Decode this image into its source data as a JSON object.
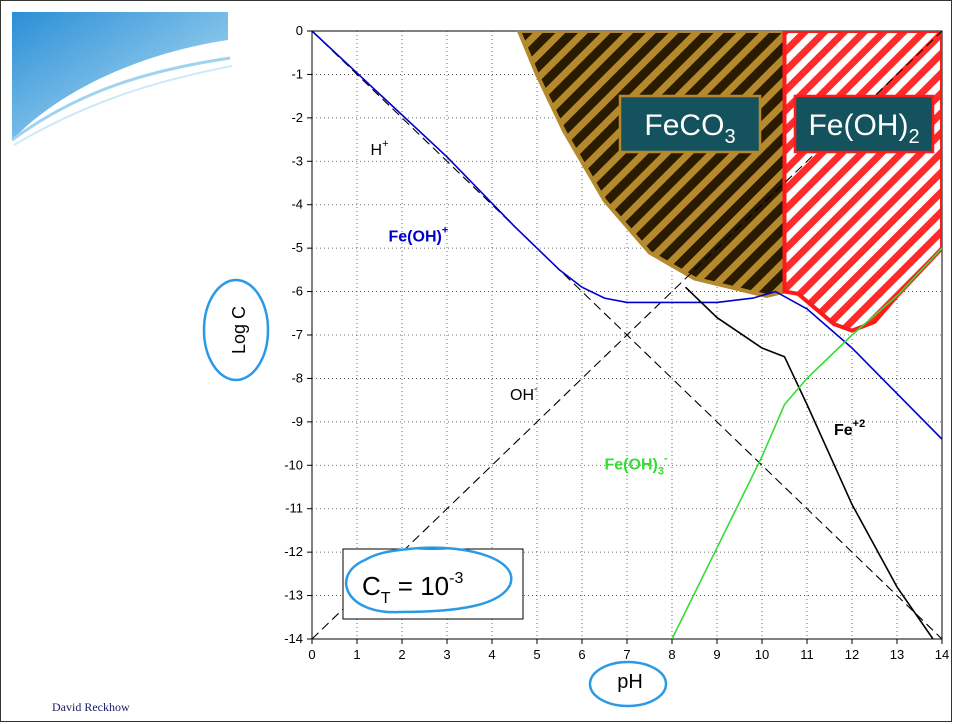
{
  "footer": {
    "author": "David Reckhow"
  },
  "annotations": {
    "ct_label": "C",
    "ct_sub": "T",
    "ct_eq": " = 10",
    "ct_sup": "-3"
  },
  "chart_data": {
    "type": "line",
    "xlabel": "pH",
    "ylabel": "Log C",
    "xlim": [
      0,
      14
    ],
    "ylim": [
      -14,
      0
    ],
    "xticks": [
      "0",
      "1",
      "2",
      "3",
      "4",
      "5",
      "6",
      "7",
      "8",
      "9",
      "10",
      "11",
      "12",
      "13",
      "14"
    ],
    "yticks": [
      "0",
      "-1",
      "-2",
      "-3",
      "-4",
      "-5",
      "-6",
      "-7",
      "-8",
      "-9",
      "-10",
      "-11",
      "-12",
      "-13",
      "-14"
    ],
    "grid": true,
    "series": [
      {
        "name": "H+",
        "style": "dashed",
        "color": "#000000",
        "x": [
          0,
          14
        ],
        "y": [
          0,
          -14
        ]
      },
      {
        "name": "OH-",
        "style": "dashed",
        "color": "#000000",
        "x": [
          0,
          14
        ],
        "y": [
          -14,
          0
        ]
      },
      {
        "name": "Fe(OH)+",
        "color": "#0000cc",
        "x": [
          0,
          3,
          4.5,
          5.5,
          6,
          6.5,
          7,
          8,
          9,
          9.8,
          10.3,
          11,
          12,
          13,
          14
        ],
        "y": [
          0,
          -2.9,
          -4.5,
          -5.5,
          -5.9,
          -6.15,
          -6.25,
          -6.25,
          -6.25,
          -6.15,
          -6.0,
          -6.4,
          -7.3,
          -8.35,
          -9.4
        ]
      },
      {
        "name": "Fe+2",
        "color": "#000000",
        "x": [
          8.3,
          9,
          10,
          10.5,
          11,
          12,
          13,
          13.8
        ],
        "y": [
          -5.9,
          -6.6,
          -7.3,
          -7.5,
          -8.6,
          -10.9,
          -12.8,
          -14
        ]
      },
      {
        "name": "Fe(OH)3-",
        "color": "#33dd33",
        "x": [
          8,
          9,
          10,
          10.5,
          11,
          12,
          13,
          14
        ],
        "y": [
          -14,
          -11.9,
          -9.8,
          -8.6,
          -8.0,
          -7.0,
          -6.1,
          -5.0
        ]
      }
    ],
    "regions": [
      {
        "name": "FeCO3",
        "label": "FeCO",
        "sub": "3",
        "fill": "#3a2400",
        "hatch": "#b58a2c",
        "x": [
          4.6,
          10.5,
          10.5,
          10.1,
          9.5,
          8.5,
          7.5,
          6.5,
          5.6,
          5.0,
          4.6
        ],
        "y": [
          0,
          0,
          -6.0,
          -6.1,
          -5.95,
          -5.7,
          -5.1,
          -3.9,
          -2.3,
          -1.0,
          0
        ]
      },
      {
        "name": "Fe(OH)2",
        "label": "Fe(OH)",
        "sub": "2",
        "fill": "#ffffff",
        "hatch": "#ff2020",
        "x": [
          10.5,
          14,
          14,
          13,
          12.5,
          12,
          11.6,
          11.2,
          10.8,
          10.5
        ],
        "y": [
          0,
          0,
          -5.0,
          -6.1,
          -6.7,
          -6.9,
          -6.75,
          -6.4,
          -6.05,
          -6.0
        ]
      }
    ],
    "labels": [
      {
        "text": "H",
        "sup": "+",
        "x": 1.3,
        "y": -2.85,
        "color": "#000000",
        "bold": false
      },
      {
        "text": "Fe(OH)",
        "sup": "+",
        "x": 1.7,
        "y": -4.85,
        "color": "#0000cc",
        "bold": true
      },
      {
        "text": "OH",
        "sup": "-",
        "x": 4.4,
        "y": -8.5,
        "color": "#000000",
        "bold": false
      },
      {
        "text": "Fe",
        "sup": "+2",
        "x": 11.6,
        "y": -9.3,
        "color": "#000000",
        "bold": true
      },
      {
        "text": "Fe(OH)",
        "sub": "3",
        "sup": "-",
        "x": 6.5,
        "y": -10.1,
        "color": "#33dd33",
        "bold": true
      }
    ]
  }
}
